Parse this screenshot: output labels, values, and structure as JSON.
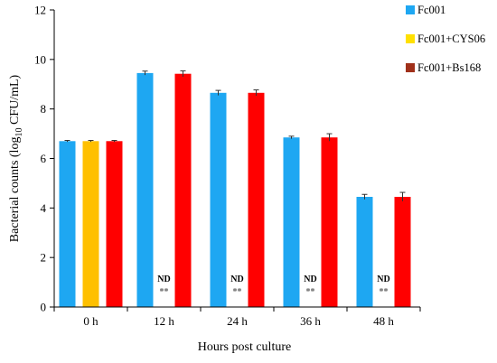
{
  "chart_data": {
    "type": "bar",
    "title": "",
    "xlabel": "Hours post culture",
    "ylabel": "Bacterial counts (log",
    "ylabel_sub": "10",
    "ylabel_tail": " CFU/mL)",
    "ylim": [
      0,
      12
    ],
    "yticks": [
      0,
      2,
      4,
      6,
      8,
      10,
      12
    ],
    "categories": [
      "0 h",
      "12 h",
      "24 h",
      "36 h",
      "48 h"
    ],
    "series": [
      {
        "name": "Fc001",
        "color": "#1ea7f2",
        "values": [
          6.7,
          9.45,
          8.65,
          6.85,
          4.45
        ],
        "errors": [
          0.03,
          0.08,
          0.1,
          0.05,
          0.1
        ]
      },
      {
        "name": "Fc001+CYS06",
        "color": "#ffc000",
        "values": [
          6.7,
          null,
          null,
          null,
          null
        ],
        "errors": [
          0.03,
          null,
          null,
          null,
          null
        ]
      },
      {
        "name": "Fc001+Bs168",
        "color": "#ff0000",
        "values": [
          6.7,
          9.42,
          8.65,
          6.85,
          4.45
        ],
        "errors": [
          0.03,
          0.12,
          0.12,
          0.15,
          0.18
        ]
      }
    ],
    "annotations": [
      {
        "category": "12 h",
        "text": "ND",
        "sig": "**"
      },
      {
        "category": "24 h",
        "text": "ND",
        "sig": "**"
      },
      {
        "category": "36 h",
        "text": "ND",
        "sig": "**"
      },
      {
        "category": "48 h",
        "text": "ND",
        "sig": "**"
      }
    ],
    "legend_position": "right",
    "legend_colors": [
      "#1ea7f2",
      "#ffe000",
      "#a0301a"
    ],
    "grid": false
  }
}
